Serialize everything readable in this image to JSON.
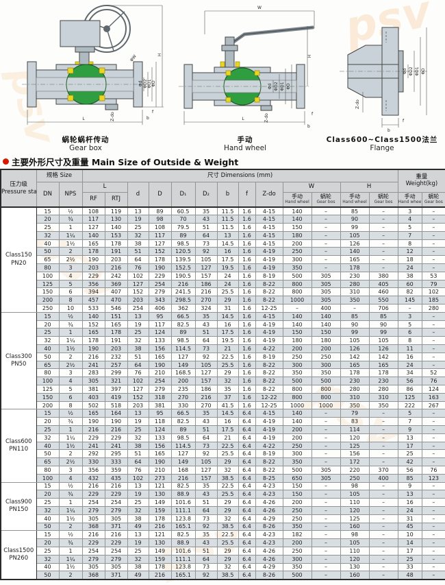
{
  "colors": {
    "accent_red": "#d61a00",
    "ball_green": "#2f9e41",
    "seat_yellow": "#e8d622",
    "row_shade": "#d9dee3",
    "header_bg": "#d2d4d5",
    "watermark_orange": "#f2a85c"
  },
  "watermark": {
    "t1": "psv",
    "t2": "psv",
    "t3": "psv",
    "t4": "psv",
    "t5": "psv"
  },
  "title": {
    "zh": "主要外形尺寸及重量",
    "en": "Main Size of Outside & Weight"
  },
  "drawings": [
    {
      "caption_zh": "蜗轮蜗杆传动",
      "caption_en": "Gear box",
      "labels": {
        "w": "ΦW",
        "h": "H",
        "d": "Φd",
        "d2": "ΦD2",
        "d1": "ΦD1",
        "dd": "ΦD",
        "zdo": "Z-do",
        "l": "L",
        "b": "b",
        "f": "f"
      }
    },
    {
      "caption_zh": "手动",
      "caption_en": "Hand wheel",
      "labels": {
        "w": "W",
        "h": "H",
        "d": "Φd",
        "d2": "ΦD2",
        "d1": "ΦD1",
        "dd": "ΦD",
        "zdo": "Z-do",
        "l": "L",
        "b": "b",
        "f": "f"
      }
    },
    {
      "caption_zh": "Class600~Class1500法兰",
      "caption_en": "Flange",
      "labels": {
        "d": "Φd",
        "d2": "ΦD2",
        "d1": "ΦD1",
        "dd": "ΦD",
        "zdo": "Z-do",
        "b": "b",
        "f": "f"
      }
    }
  ],
  "table": {
    "header": {
      "pressure_zh": "压力级",
      "pressure_en": "Pressure stage",
      "size": "规格 Size",
      "dims": "尺寸 Dimensions (mm)",
      "weight_zh": "重量",
      "weight_en": "Weight(kg)",
      "dn": "DN",
      "nps": "NPS",
      "l": "L",
      "rf": "RF",
      "rtj": "RTJ",
      "d": "d",
      "dd": "D",
      "d1": "D₁",
      "d2": "D₂",
      "b": "b",
      "f": "f",
      "zdo": "Z-do",
      "w": "W",
      "h": "H",
      "hand_zh": "手动",
      "hand_en": "Hand wheel",
      "gear_zh": "蜗轮",
      "gear_en": "Gear bos"
    },
    "groups": [
      {
        "class": "Class150",
        "pn": "PN20",
        "rows": [
          [
            "15",
            "½",
            "108",
            "119",
            "13",
            "89",
            "60.5",
            "35",
            "11.5",
            "1.6",
            "4-15",
            "140",
            "–",
            "85",
            "–",
            "3",
            "–"
          ],
          [
            "20",
            "¾",
            "117",
            "130",
            "19",
            "98",
            "70",
            "43",
            "11.5",
            "1.6",
            "4-15",
            "140",
            "–",
            "90",
            "–",
            "4",
            "–"
          ],
          [
            "25",
            "1",
            "127",
            "140",
            "25",
            "108",
            "79.5",
            "51",
            "11.5",
            "1.6",
            "4-15",
            "150",
            "–",
            "99",
            "–",
            "5",
            "–"
          ],
          [
            "32",
            "1¼",
            "140",
            "153",
            "32",
            "117",
            "89",
            "64",
            "13",
            "1.6",
            "4-15",
            "180",
            "–",
            "105",
            "–",
            "7",
            "–"
          ],
          [
            "40",
            "1½",
            "165",
            "178",
            "38",
            "127",
            "98.5",
            "73",
            "14.5",
            "1.6",
            "4-15",
            "200",
            "–",
            "126",
            "–",
            "8",
            "–"
          ],
          [
            "50",
            "2",
            "178",
            "191",
            "51",
            "152",
            "120.5",
            "92",
            "16",
            "1.6",
            "4-19",
            "250",
            "–",
            "140",
            "–",
            "12",
            "–"
          ],
          [
            "65",
            "2½",
            "190",
            "203",
            "64",
            "178",
            "139.5",
            "105",
            "17.5",
            "1.6",
            "4-19",
            "300",
            "–",
            "165",
            "–",
            "18",
            "–"
          ],
          [
            "80",
            "3",
            "203",
            "216",
            "76",
            "190",
            "152.5",
            "127",
            "19.5",
            "1.6",
            "4-19",
            "350",
            "–",
            "178",
            "–",
            "24",
            "–"
          ],
          [
            "100",
            "4",
            "229",
            "242",
            "102",
            "229",
            "190.5",
            "157",
            "24",
            "1.6",
            "8-19",
            "500",
            "305",
            "230",
            "380",
            "38",
            "53"
          ],
          [
            "125",
            "5",
            "356",
            "369",
            "127",
            "254",
            "216",
            "186",
            "24",
            "1.6",
            "8-22",
            "800",
            "305",
            "280",
            "405",
            "60",
            "79"
          ],
          [
            "150",
            "6",
            "394",
            "407",
            "152",
            "279",
            "241.5",
            "216",
            "25.5",
            "1.6",
            "8-22",
            "800",
            "305",
            "310",
            "460",
            "82",
            "102"
          ],
          [
            "200",
            "8",
            "457",
            "470",
            "203",
            "343",
            "298.5",
            "270",
            "29",
            "1.6",
            "8-22",
            "1000",
            "305",
            "350",
            "550",
            "145",
            "185"
          ],
          [
            "250",
            "10",
            "533",
            "546",
            "254",
            "406",
            "362",
            "324",
            "31",
            "1.6",
            "12-25",
            "–",
            "400",
            "–",
            "706",
            "–",
            "280"
          ]
        ]
      },
      {
        "class": "Class300",
        "pn": "PN50",
        "rows": [
          [
            "15",
            "½",
            "140",
            "151",
            "13",
            "95",
            "66.5",
            "35",
            "14.5",
            "1.6",
            "4-15",
            "140",
            "140",
            "85",
            "85",
            "3",
            "–"
          ],
          [
            "20",
            "¾",
            "152",
            "165",
            "19",
            "117",
            "82.5",
            "43",
            "16",
            "1.6",
            "4-19",
            "140",
            "140",
            "90",
            "90",
            "5",
            "–"
          ],
          [
            "25",
            "1",
            "165",
            "178",
            "25",
            "124",
            "89",
            "51",
            "17.5",
            "1.6",
            "4-19",
            "150",
            "150",
            "99",
            "99",
            "6",
            "–"
          ],
          [
            "32",
            "1¼",
            "178",
            "191",
            "32",
            "133",
            "98.5",
            "64",
            "19.5",
            "1.6",
            "4-19",
            "180",
            "180",
            "105",
            "105",
            "8",
            "–"
          ],
          [
            "40",
            "1½",
            "190",
            "203",
            "38",
            "156",
            "114.5",
            "73",
            "21",
            "1.6",
            "4-22",
            "200",
            "200",
            "126",
            "126",
            "11",
            "–"
          ],
          [
            "50",
            "2",
            "216",
            "232",
            "51",
            "165",
            "127",
            "92",
            "22.5",
            "1.6",
            "8-19",
            "250",
            "250",
            "142",
            "142",
            "16",
            "–"
          ],
          [
            "65",
            "2½",
            "241",
            "257",
            "64",
            "190",
            "149",
            "105",
            "25.5",
            "1.6",
            "8-22",
            "300",
            "300",
            "165",
            "165",
            "24",
            "–"
          ],
          [
            "80",
            "3",
            "283",
            "299",
            "76",
            "210",
            "168.5",
            "127",
            "29",
            "1.6",
            "8-22",
            "350",
            "350",
            "178",
            "178",
            "34",
            "52"
          ],
          [
            "100",
            "4",
            "305",
            "321",
            "102",
            "254",
            "200",
            "157",
            "32",
            "1.6",
            "8-22",
            "500",
            "500",
            "230",
            "230",
            "56",
            "76"
          ],
          [
            "125",
            "5",
            "381",
            "397",
            "127",
            "279",
            "235",
            "186",
            "35",
            "1.6",
            "8-22",
            "800",
            "800",
            "280",
            "280",
            "86",
            "124"
          ],
          [
            "150",
            "6",
            "403",
            "419",
            "152",
            "318",
            "270",
            "216",
            "37",
            "1.6",
            "12-22",
            "800",
            "800",
            "310",
            "310",
            "125",
            "163"
          ],
          [
            "200",
            "8",
            "502",
            "518",
            "203",
            "381",
            "330",
            "270",
            "41.5",
            "1.6",
            "12-25",
            "1000",
            "1000",
            "350",
            "350",
            "222",
            "267"
          ]
        ]
      },
      {
        "class": "Class600",
        "pn": "PN110",
        "rows": [
          [
            "15",
            "½",
            "165",
            "164",
            "13",
            "95",
            "66.5",
            "35",
            "14.5",
            "6.4",
            "4-15",
            "140",
            "–",
            "79",
            "–",
            "5",
            "–"
          ],
          [
            "20",
            "¾",
            "190",
            "190",
            "19",
            "118",
            "82.5",
            "43",
            "16",
            "6.4",
            "4-19",
            "140",
            "–",
            "83",
            "–",
            "7",
            "–"
          ],
          [
            "25",
            "1",
            "216",
            "216",
            "25",
            "124",
            "89",
            "51",
            "17.5",
            "6.4",
            "4-19",
            "200",
            "–",
            "114",
            "–",
            "9",
            "–"
          ],
          [
            "32",
            "1¼",
            "229",
            "229",
            "32",
            "133",
            "98.5",
            "64",
            "21",
            "6.4",
            "4-19",
            "200",
            "–",
            "120",
            "–",
            "13",
            "–"
          ],
          [
            "40",
            "1½",
            "241",
            "241",
            "38",
            "156",
            "114.5",
            "73",
            "22.5",
            "6.4",
            "4-22",
            "250",
            "–",
            "125",
            "–",
            "17",
            "–"
          ],
          [
            "50",
            "2",
            "292",
            "295",
            "51",
            "165",
            "127",
            "92",
            "25.5",
            "6.4",
            "8-19",
            "300",
            "–",
            "156",
            "–",
            "25",
            "–"
          ],
          [
            "65",
            "2½",
            "330",
            "333",
            "64",
            "190",
            "149",
            "105",
            "29",
            "6.4",
            "8-22",
            "350",
            "–",
            "172",
            "–",
            "42",
            "–"
          ],
          [
            "80",
            "3",
            "356",
            "359",
            "76",
            "210",
            "168",
            "127",
            "32",
            "6.4",
            "8-22",
            "500",
            "305",
            "220",
            "370",
            "56",
            "76"
          ],
          [
            "100",
            "4",
            "432",
            "435",
            "102",
            "273",
            "216",
            "157",
            "38.5",
            "6.4",
            "8-25",
            "650",
            "305",
            "250",
            "400",
            "85",
            "123"
          ]
        ]
      },
      {
        "class": "Class900",
        "pn": "PN150",
        "rows": [
          [
            "15",
            "½",
            "216",
            "216",
            "13",
            "121",
            "82.5",
            "35",
            "22.5",
            "6.4",
            "4-23",
            "150",
            "–",
            "98",
            "–",
            "9",
            "–"
          ],
          [
            "20",
            "¾",
            "229",
            "229",
            "19",
            "130",
            "88.9",
            "43",
            "25.5",
            "6.4",
            "4-23",
            "150",
            "–",
            "105",
            "–",
            "13",
            "–"
          ],
          [
            "25",
            "1",
            "254",
            "254",
            "25",
            "149",
            "101.6",
            "51",
            "29",
            "6.4",
            "4-26",
            "200",
            "–",
            "110",
            "–",
            "16",
            "–"
          ],
          [
            "32",
            "1¼",
            "279",
            "279",
            "32",
            "159",
            "111.1",
            "64",
            "29",
            "6.4",
            "4-26",
            "250",
            "–",
            "120",
            "–",
            "24",
            "–"
          ],
          [
            "40",
            "1½",
            "305",
            "305",
            "38",
            "178",
            "123.8",
            "73",
            "32",
            "6.4",
            "4-29",
            "250",
            "–",
            "125",
            "–",
            "31",
            "–"
          ],
          [
            "50",
            "2",
            "368",
            "371",
            "49",
            "216",
            "165.1",
            "92",
            "38.5",
            "6.4",
            "8-26",
            "350",
            "–",
            "160",
            "–",
            "45",
            "–"
          ]
        ]
      },
      {
        "class": "Class1500",
        "pn": "PN260",
        "rows": [
          [
            "15",
            "½",
            "216",
            "216",
            "13",
            "121",
            "82.5",
            "35",
            "22.5",
            "6.4",
            "4-23",
            "182",
            "–",
            "98",
            "–",
            "10",
            "–"
          ],
          [
            "20",
            "¾",
            "229",
            "229",
            "19",
            "130",
            "88.9",
            "43",
            "25.5",
            "6.4",
            "4-23",
            "200",
            "–",
            "105",
            "–",
            "14",
            "–"
          ],
          [
            "25",
            "1",
            "254",
            "254",
            "25",
            "149",
            "101.6",
            "51",
            "29",
            "6.4",
            "4-26",
            "250",
            "–",
            "110",
            "–",
            "17",
            "–"
          ],
          [
            "32",
            "1¼",
            "279",
            "279",
            "32",
            "159",
            "111.1",
            "64",
            "29",
            "6.4",
            "4-26",
            "300",
            "–",
            "120",
            "–",
            "25",
            "–"
          ],
          [
            "40",
            "1½",
            "305",
            "305",
            "38",
            "178",
            "123.8",
            "73",
            "32",
            "6.4",
            "4-29",
            "350",
            "–",
            "130",
            "–",
            "33",
            "–"
          ],
          [
            "50",
            "2",
            "368",
            "371",
            "49",
            "216",
            "165.1",
            "92",
            "38.5",
            "6.4",
            "8-26",
            "500",
            "–",
            "160",
            "–",
            "48",
            "–"
          ]
        ]
      }
    ]
  }
}
